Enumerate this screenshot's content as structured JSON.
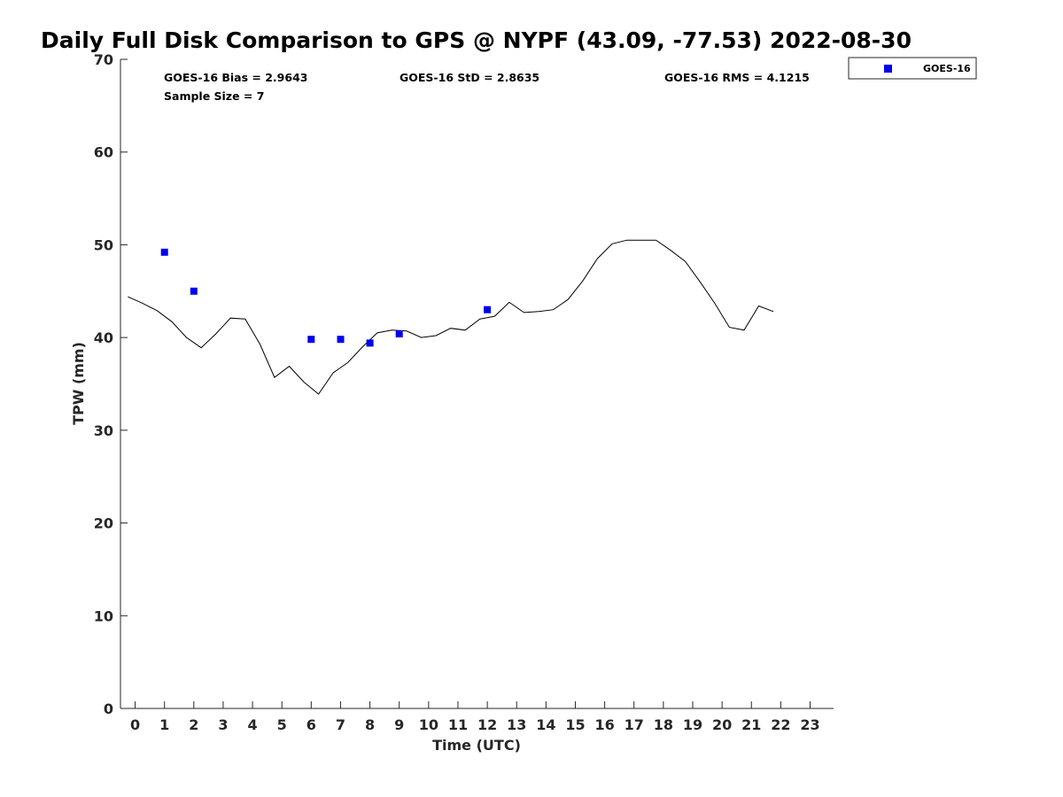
{
  "chart_data": {
    "type": "scatter",
    "title": "Daily Full Disk Comparison to GPS @ NYPF (43.09, -77.53) 2022-08-30",
    "xlabel": "Time (UTC)",
    "ylabel": "TPW (mm)",
    "xlim": [
      -0.5,
      23.8
    ],
    "ylim": [
      0,
      70
    ],
    "x_ticks": [
      "0",
      "1",
      "2",
      "3",
      "4",
      "5",
      "6",
      "7",
      "8",
      "9",
      "10",
      "11",
      "12",
      "13",
      "14",
      "15",
      "16",
      "17",
      "18",
      "19",
      "20",
      "21",
      "22",
      "23"
    ],
    "y_ticks": [
      "0",
      "10",
      "20",
      "30",
      "40",
      "50",
      "60",
      "70"
    ],
    "grid": false,
    "legend_position": "top-right",
    "annotations": {
      "bias": "GOES-16 Bias = 2.9643",
      "std": "GOES-16 StD = 2.8635",
      "rms": "GOES-16 RMS = 4.1215",
      "sample": "Sample Size = 7"
    },
    "series": [
      {
        "name": "GOES-16",
        "kind": "scatter",
        "color": "#0000ee",
        "x": [
          1.0,
          2.0,
          6.0,
          7.0,
          8.0,
          9.0,
          12.0
        ],
        "y": [
          49.2,
          45.0,
          39.8,
          39.8,
          39.4,
          40.4,
          43.0
        ]
      },
      {
        "kind": "line",
        "color": "#000000",
        "x": [
          -0.25,
          0.25,
          0.75,
          1.25,
          1.75,
          2.25,
          2.75,
          3.25,
          3.75,
          4.25,
          4.75,
          5.25,
          5.75,
          6.25,
          6.75,
          7.25,
          7.75,
          8.25,
          8.75,
          9.25,
          9.75,
          10.25,
          10.75,
          11.25,
          11.75,
          12.25,
          12.75,
          13.25,
          13.75,
          14.25,
          14.75,
          15.25,
          15.75,
          16.25,
          16.75,
          17.25,
          17.75,
          18.25,
          18.75,
          19.25,
          19.75,
          20.25,
          20.75,
          21.25,
          21.75
        ],
        "y": [
          44.4,
          43.7,
          42.9,
          41.7,
          40.0,
          38.9,
          40.4,
          42.1,
          42.0,
          39.3,
          35.7,
          36.9,
          35.2,
          33.9,
          36.2,
          37.3,
          39.0,
          40.5,
          40.8,
          40.7,
          40.0,
          40.2,
          41.0,
          40.8,
          42.0,
          42.3,
          43.8,
          42.7,
          42.8,
          43.0,
          44.1,
          46.1,
          48.5,
          50.1,
          50.5,
          50.5,
          50.5,
          49.4,
          48.2,
          46.0,
          43.7,
          41.1,
          40.8,
          43.4,
          42.8
        ]
      }
    ]
  }
}
